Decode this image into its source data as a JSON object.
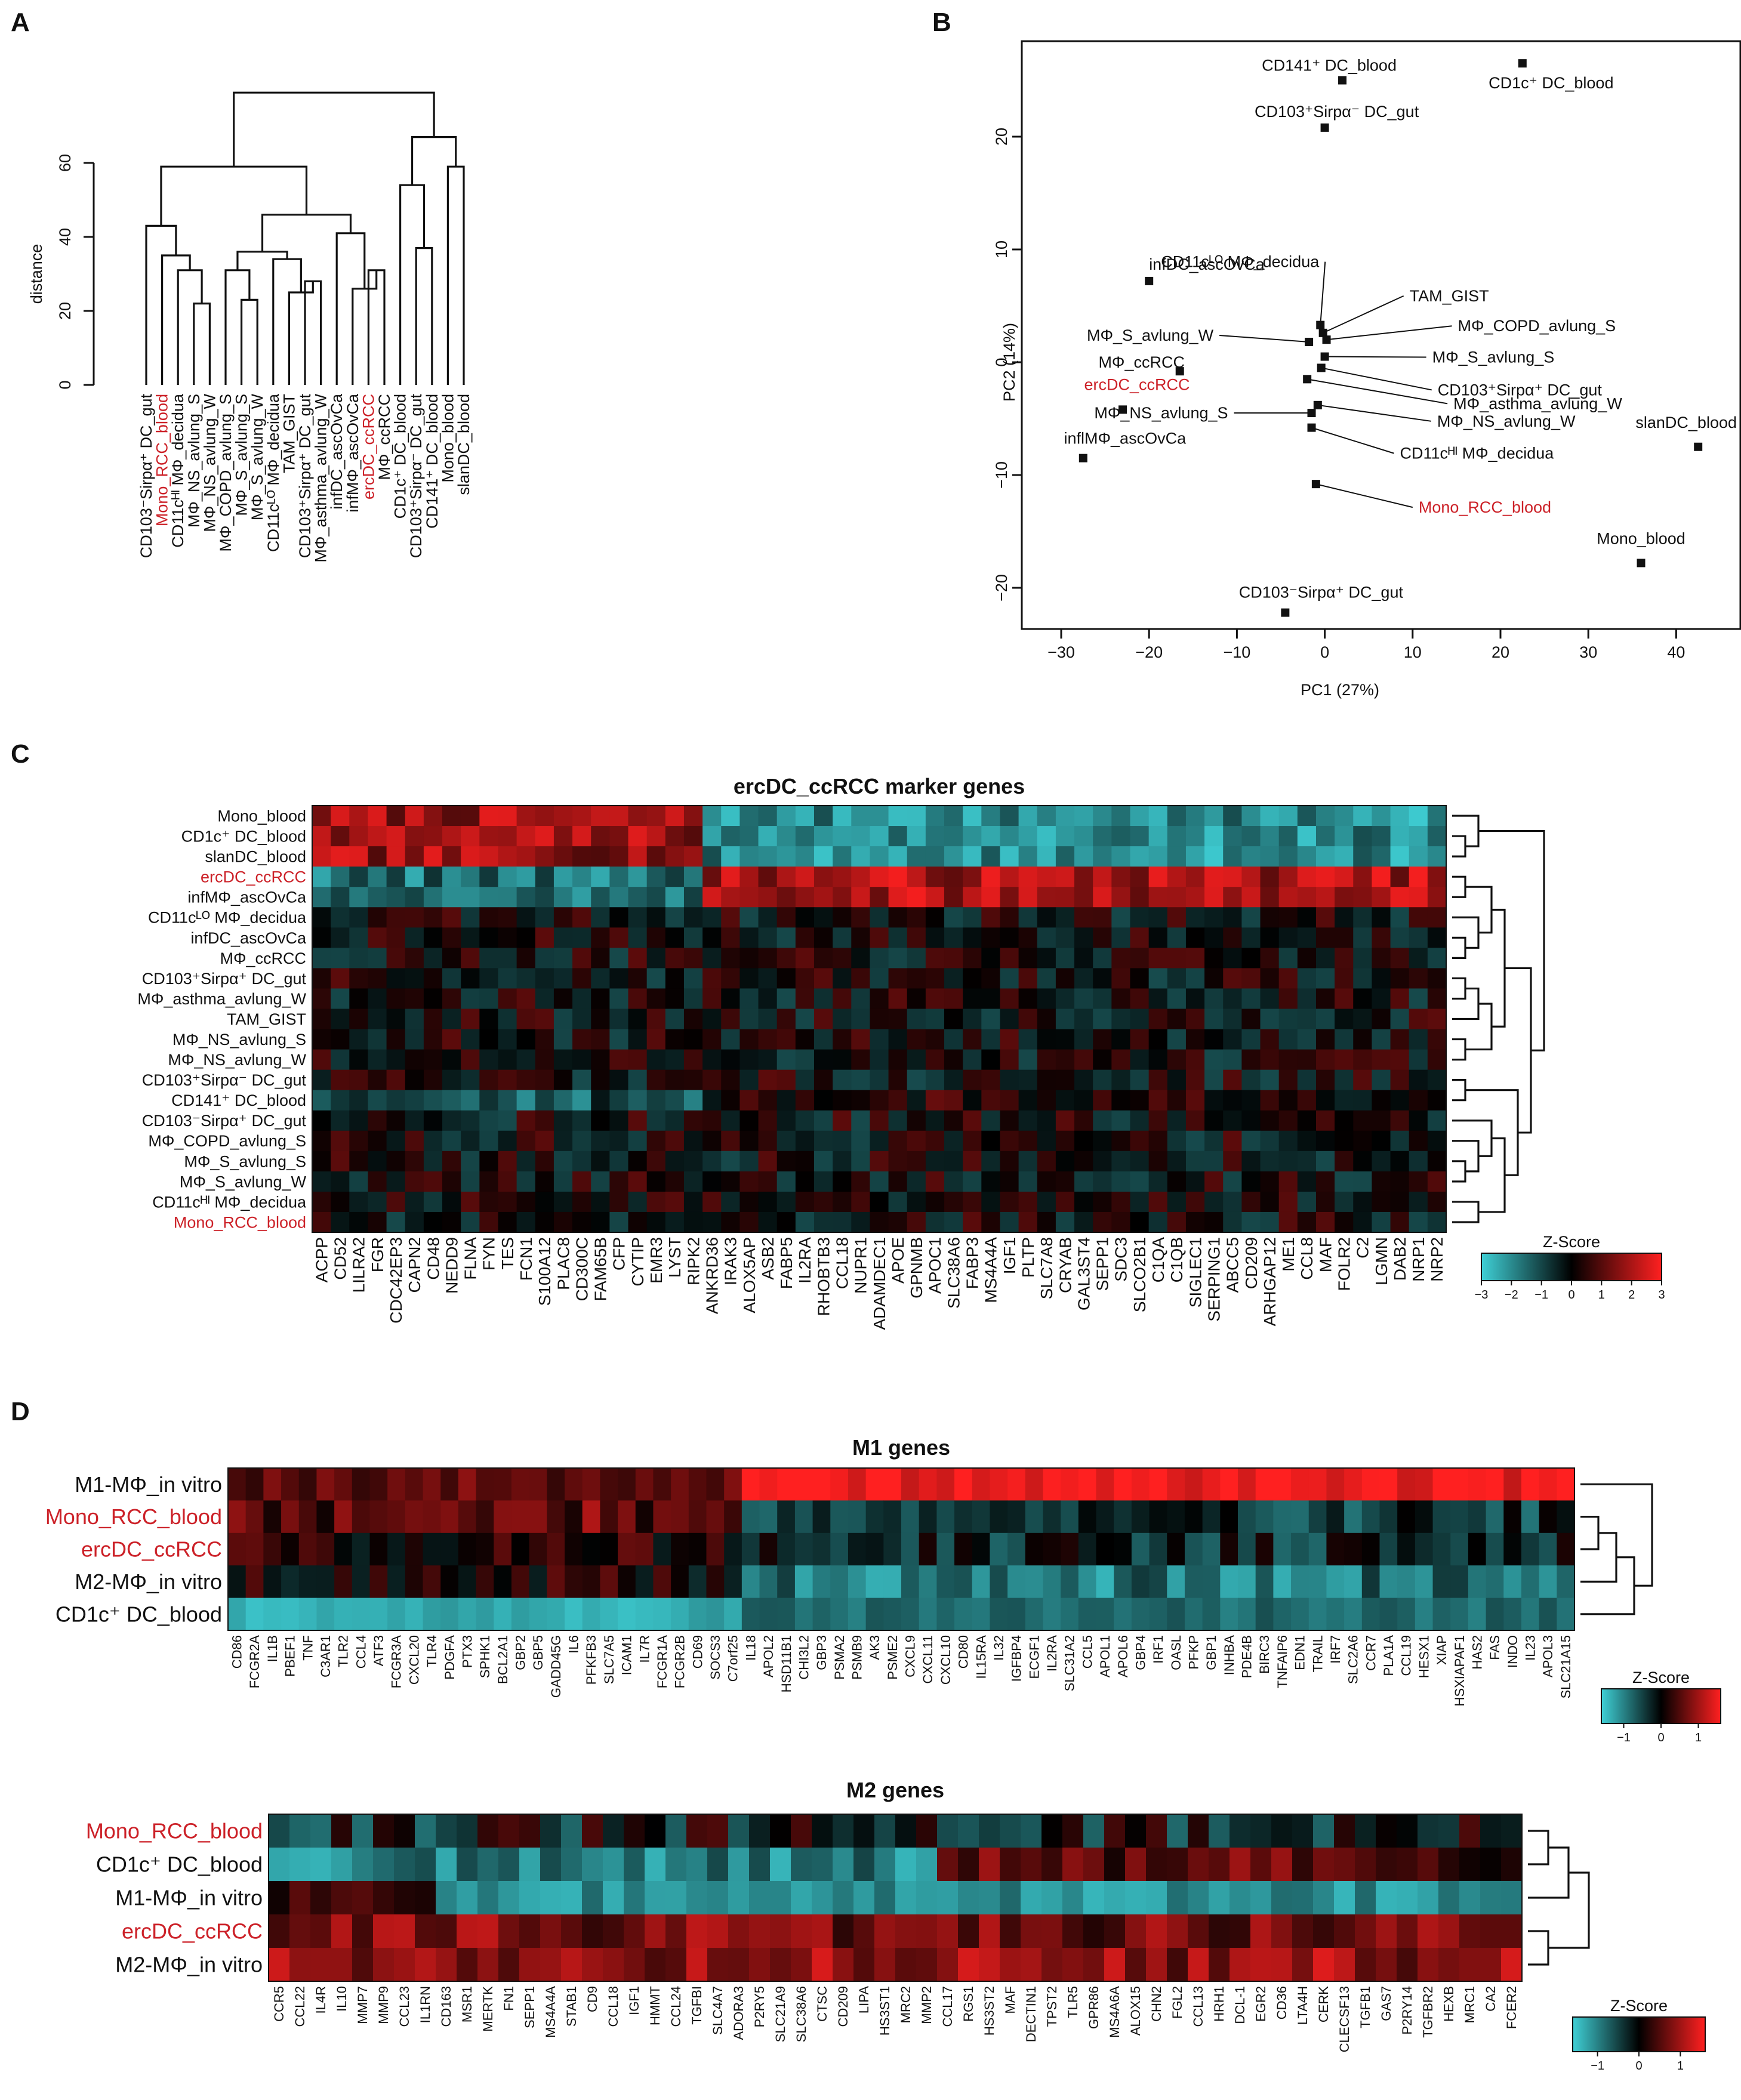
{
  "panel_labels": [
    "A",
    "B",
    "C",
    "D"
  ],
  "colors": {
    "highlight": "#cc2128",
    "low": "#3fd0d6",
    "mid": "#000000",
    "high": "#ff2020"
  },
  "chart_data": [
    {
      "id": "A",
      "type": "dendrogram",
      "ylabel": "distance",
      "yticks": [
        "0",
        "20",
        "40",
        "60"
      ],
      "ylim": [
        0,
        60
      ],
      "leaves": [
        "CD103⁻Sirpα⁺ DC_gut",
        "Mono_RCC_blood",
        "CD11cᴴᴵ MΦ_decidua",
        "MΦ_NS_avlung_S",
        "MΦ_NS_avlung_W",
        "MΦ_COPD_avlung_S",
        "MΦ_S_avlung_S",
        "MΦ_S_avlung_W",
        "CD11cᴸᴼ MΦ_decidua",
        "TAM_GIST",
        "CD103⁺Sirpα⁺ DC_gut",
        "MΦ_asthma_avlung_W",
        "infDC_ascOvCa",
        "infMΦ_ascOvCa",
        "ercDC_ccRCC",
        "MΦ_ccRCC",
        "CD1c⁺ DC_blood",
        "CD103⁺Sirpα⁻ DC_gut",
        "CD141⁺ DC_blood",
        "Mono_blood",
        "slanDC_blood"
      ],
      "highlighted": [
        "Mono_RCC_blood",
        "ercDC_ccRCC"
      ],
      "merge_heights": [
        43,
        35,
        31,
        22,
        23,
        31,
        25,
        34,
        28,
        36,
        41,
        31,
        26,
        46,
        54,
        37,
        59,
        67,
        72,
        79
      ]
    },
    {
      "id": "B",
      "type": "scatter",
      "xlabel": "PC1 (27%)",
      "ylabel": "PC2 (14%)",
      "xlim": [
        -30,
        42
      ],
      "ylim": [
        -22,
        27
      ],
      "xticks": [
        "−30",
        "−20",
        "−10",
        "0",
        "10",
        "20",
        "30",
        "40"
      ],
      "yticks": [
        "−20",
        "−10",
        "0",
        "10",
        "20"
      ],
      "points": [
        {
          "label": "CD141⁺ DC_blood",
          "x": 2,
          "y": 25
        },
        {
          "label": "CD1c⁺ DC_blood",
          "x": 22.5,
          "y": 26.5
        },
        {
          "label": "CD103⁺Sirpα⁻ DC_gut",
          "x": 0,
          "y": 20.8
        },
        {
          "label": "infDC_ascOvCa",
          "x": -20,
          "y": 7.2
        },
        {
          "label": "CD11cᴸᴼ MΦ_decidua",
          "x": -0.5,
          "y": 3.3
        },
        {
          "label": "TAM_GIST",
          "x": -0.2,
          "y": 2.6
        },
        {
          "label": "MΦ_COPD_avlung_S",
          "x": 0.2,
          "y": 2
        },
        {
          "label": "MΦ_S_avlung_W",
          "x": -1.8,
          "y": 1.8
        },
        {
          "label": "MΦ_S_avlung_S",
          "x": 0,
          "y": 0.5
        },
        {
          "label": "MΦ_ccRCC",
          "x": -16.5,
          "y": -0.8
        },
        {
          "label": "CD103⁺Sirpα⁺ DC_gut",
          "x": -0.4,
          "y": -0.5
        },
        {
          "label": "ercDC_ccRCC",
          "x": -23,
          "y": -4.2
        },
        {
          "label": "MΦ_asthma_avlung_W",
          "x": -2,
          "y": -1.5
        },
        {
          "label": "MΦ_NS_avlung_S",
          "x": -1.5,
          "y": -4.5
        },
        {
          "label": "MΦ_NS_avlung_W",
          "x": -0.8,
          "y": -3.8
        },
        {
          "label": "CD11cᴴᴵ MΦ_decidua",
          "x": -1.5,
          "y": -5.8
        },
        {
          "label": "inflMΦ_ascOvCa",
          "x": -27.5,
          "y": -8.5
        },
        {
          "label": "Mono_RCC_blood",
          "x": -1,
          "y": -10.8
        },
        {
          "label": "slanDC_blood",
          "x": 42.5,
          "y": -7.5
        },
        {
          "label": "Mono_blood",
          "x": 36,
          "y": -17.8
        },
        {
          "label": "CD103⁻Sirpα⁺ DC_gut",
          "x": -4.5,
          "y": -22.2
        }
      ],
      "highlighted": [
        "ercDC_ccRCC",
        "Mono_RCC_blood"
      ]
    },
    {
      "id": "C",
      "type": "heatmap",
      "title": "ercDC_ccRCC marker genes",
      "rows": [
        "Mono_blood",
        "CD1c⁺ DC_blood",
        "slanDC_blood",
        "ercDC_ccRCC",
        "infMΦ_ascOvCa",
        "CD11cᴸᴼ MΦ_decidua",
        "infDC_ascOvCa",
        "MΦ_ccRCC",
        "CD103⁺Sirpα⁺ DC_gut",
        "MΦ_asthma_avlung_W",
        "TAM_GIST",
        "MΦ_NS_avlung_S",
        "MΦ_NS_avlung_W",
        "CD103⁺Sirpα⁻ DC_gut",
        "CD141⁺ DC_blood",
        "CD103⁻Sirpα⁺ DC_gut",
        "MΦ_COPD_avlung_S",
        "MΦ_S_avlung_S",
        "MΦ_S_avlung_W",
        "CD11cᴴᴵ MΦ_decidua",
        "Mono_RCC_blood"
      ],
      "columns": [
        "ACPP",
        "CD52",
        "LILRA2",
        "FGR",
        "CDC42EP3",
        "CAPN2",
        "CD48",
        "NEDD9",
        "FLNA",
        "FYN",
        "TES",
        "FCN1",
        "S100A12",
        "PLAC8",
        "CD300C",
        "FAM65B",
        "CFP",
        "CYTIP",
        "EMR3",
        "LYST",
        "RIPK2",
        "ANKRD36",
        "IRAK3",
        "ALOX5AP",
        "ASB2",
        "FABP5",
        "IL2RA",
        "RHOBTB3",
        "CCL18",
        "NUPR1",
        "ADAMDEC1",
        "APOE",
        "GPNMB",
        "APOC1",
        "SLC38A6",
        "FABP3",
        "MS4A4A",
        "IGF1",
        "PLTP",
        "SLC7A8",
        "CRYAB",
        "GAL3ST4",
        "SEPP1",
        "SDC3",
        "SLCO2B1",
        "C1QA",
        "C1QB",
        "SIGLEC1",
        "SERPING1",
        "ABCC5",
        "CD209",
        "ARHGAP12",
        "ME1",
        "CCL8",
        "MAF",
        "FOLR2",
        "C2",
        "LGMN",
        "DAB2",
        "NRP1",
        "NRP2"
      ],
      "highlighted": [
        "ercDC_ccRCC",
        "Mono_RCC_blood"
      ],
      "scale": {
        "title": "Z-Score",
        "ticks": [
          "−3",
          "−2",
          "−1",
          "0",
          "1",
          "2",
          "3"
        ],
        "min": -3,
        "max": 3
      }
    },
    {
      "id": "D1",
      "type": "heatmap",
      "title": "M1 genes",
      "rows": [
        "M1-MΦ_in vitro",
        "Mono_RCC_blood",
        "ercDC_ccRCC",
        "M2-MΦ_in vitro",
        "CD1c⁺ DC_blood"
      ],
      "columns": [
        "CD86",
        "FCGR2A",
        "IL1B",
        "PBEF1",
        "TNF",
        "C3AR1",
        "TLR2",
        "CCL4",
        "ATF3",
        "FCGR3A",
        "CXCL20",
        "TLR4",
        "PDGFA",
        "PTX3",
        "SPHK1",
        "BCL2A1",
        "GBP2",
        "GBP5",
        "GADD45G",
        "IL6",
        "PFKFB3",
        "SLC7A5",
        "ICAM1",
        "IL7R",
        "FCGR1A",
        "FCGR2B",
        "CD69",
        "SOCS3",
        "C7orf25",
        "IL18",
        "APOL2",
        "HSD11B1",
        "CHI3L2",
        "GBP3",
        "PSMA2",
        "PSMB9",
        "AK3",
        "PSME2",
        "CXCL9",
        "CXCL11",
        "CXCL10",
        "CD80",
        "IL15RA",
        "IL32",
        "IGFBP4",
        "ECGF1",
        "IL2RA",
        "SLC31A2",
        "CCL5",
        "APOL1",
        "APOL6",
        "GBP4",
        "IRF1",
        "OASL",
        "PFKP",
        "GBP1",
        "INHBA",
        "PDE4B",
        "BIRC3",
        "TNFAIP6",
        "EDN1",
        "TRAIL",
        "IRF7",
        "SLC2A6",
        "CCR7",
        "PLA1A",
        "CCL19",
        "HESX1",
        "XIAP",
        "HSXIAPAF1",
        "HAS2",
        "FAS",
        "INDO",
        "IL23",
        "APOL3",
        "SLC21A15"
      ],
      "highlighted": [
        "Mono_RCC_blood",
        "ercDC_ccRCC"
      ],
      "scale": {
        "title": "Z-Score",
        "ticks": [
          "−1",
          "0",
          "1"
        ],
        "min": -1.6,
        "max": 1.6
      }
    },
    {
      "id": "D2",
      "type": "heatmap",
      "title": "M2 genes",
      "rows": [
        "Mono_RCC_blood",
        "CD1c⁺ DC_blood",
        "M1-MΦ_in vitro",
        "ercDC_ccRCC",
        "M2-MΦ_in vitro"
      ],
      "columns": [
        "CCR5",
        "CCL22",
        "IL4R",
        "IL10",
        "MMP7",
        "MMP9",
        "CCL23",
        "IL1RN",
        "CD163",
        "MSR1",
        "MERTK",
        "FN1",
        "SEPP1",
        "MS4A4A",
        "STAB1",
        "CD9",
        "CCL18",
        "IGF1",
        "HMMT",
        "CCL24",
        "TGFBI",
        "SLC4A7",
        "ADORA3",
        "P2RY5",
        "SLC21A9",
        "SLC38A6",
        "CTSC",
        "CD209",
        "LIPA",
        "HS3ST1",
        "MRC2",
        "MMP2",
        "CCL17",
        "RGS1",
        "HS3ST2",
        "MAF",
        "DECTIN1",
        "TPST2",
        "TLR5",
        "GPR86",
        "MS4A6A",
        "ALOX15",
        "CHN2",
        "FGL2",
        "CCL13",
        "HRH1",
        "DCL-1",
        "EGR2",
        "CD36",
        "LTA4H",
        "CERK",
        "CLECSF13",
        "TGFB1",
        "GAS7",
        "P2RY14",
        "TGFBR2",
        "HEXB",
        "MRC1",
        "CA2",
        "FCER2"
      ],
      "highlighted": [
        "Mono_RCC_blood",
        "ercDC_ccRCC"
      ],
      "scale": {
        "title": "Z-Score",
        "ticks": [
          "−1",
          "0",
          "1"
        ],
        "min": -1.6,
        "max": 1.6
      }
    }
  ]
}
